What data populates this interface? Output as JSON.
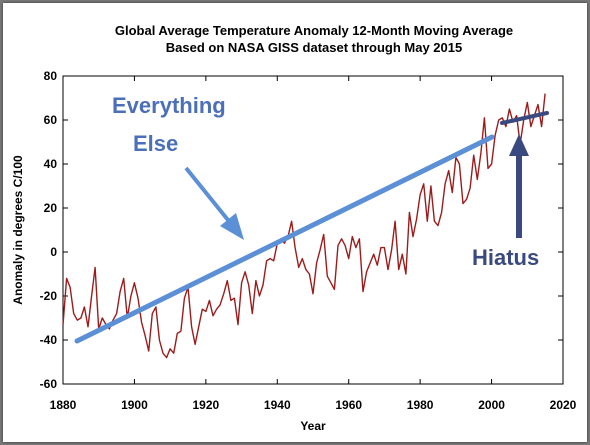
{
  "chart_data": {
    "type": "line",
    "title": "Global Average Temperature Anomaly 12-Month Moving Average",
    "subtitle": "Based on NASA GISS dataset through May 2015",
    "xlabel": "Year",
    "ylabel": "Anomaly in degrees C/100",
    "xlim": [
      1880,
      2020
    ],
    "ylim": [
      -60,
      80
    ],
    "xticks": [
      1880,
      1900,
      1920,
      1940,
      1960,
      1980,
      2000,
      2020
    ],
    "yticks": [
      -60,
      -40,
      -20,
      0,
      20,
      40,
      60,
      80
    ],
    "grid": false,
    "series": [
      {
        "color": "#9b1c1c",
        "x": [
          1880.0,
          1881.0,
          1882.0,
          1883.0,
          1884.0,
          1885.0,
          1886.0,
          1887.0,
          1888.0,
          1889.0,
          1890.0,
          1891.0,
          1892.0,
          1893.0,
          1894.0,
          1895.0,
          1896.0,
          1897.0,
          1898.0,
          1899.0,
          1900.0,
          1901.0,
          1902.0,
          1903.0,
          1904.0,
          1905.0,
          1906.0,
          1907.0,
          1908.0,
          1909.0,
          1910.0,
          1911.0,
          1912.0,
          1913.0,
          1914.0,
          1915.0,
          1916.0,
          1917.0,
          1918.0,
          1919.0,
          1920.0,
          1921.0,
          1922.0,
          1923.0,
          1924.0,
          1925.0,
          1926.0,
          1927.0,
          1928.0,
          1929.0,
          1930.0,
          1931.0,
          1932.0,
          1933.0,
          1934.0,
          1935.0,
          1936.0,
          1937.0,
          1938.0,
          1939.0,
          1940.0,
          1941.0,
          1942.0,
          1943.0,
          1944.0,
          1945.0,
          1946.0,
          1947.0,
          1948.0,
          1949.0,
          1950.0,
          1951.0,
          1952.0,
          1953.0,
          1954.0,
          1955.0,
          1956.0,
          1957.0,
          1958.0,
          1959.0,
          1960.0,
          1961.0,
          1962.0,
          1963.0,
          1964.0,
          1965.0,
          1966.0,
          1967.0,
          1968.0,
          1969.0,
          1970.0,
          1971.0,
          1972.0,
          1973.0,
          1974.0,
          1975.0,
          1976.0,
          1977.0,
          1978.0,
          1979.0,
          1980.0,
          1981.0,
          1982.0,
          1983.0,
          1984.0,
          1985.0,
          1986.0,
          1987.0,
          1988.0,
          1989.0,
          1990.0,
          1991.0,
          1992.0,
          1993.0,
          1994.0,
          1995.0,
          1996.0,
          1997.0,
          1998.0,
          1999.0,
          2000.0,
          2001.0,
          2002.0,
          2003.0,
          2004.0,
          2005.0,
          2006.0,
          2007.0,
          2008.0,
          2009.0,
          2010.0,
          2011.0,
          2012.0,
          2013.0,
          2014.0,
          2015.0
        ],
        "values": [
          -33,
          -12,
          -16,
          -28,
          -31,
          -30,
          -25,
          -34,
          -20,
          -7,
          -35,
          -30,
          -33,
          -35,
          -31,
          -28,
          -18,
          -12,
          -30,
          -20,
          -14,
          -21,
          -32,
          -38,
          -45,
          -28,
          -25,
          -40,
          -46,
          -48,
          -44,
          -46,
          -37,
          -36,
          -21,
          -16,
          -34,
          -42,
          -34,
          -26,
          -27,
          -22,
          -29,
          -26,
          -24,
          -19,
          -13,
          -22,
          -21,
          -33,
          -14,
          -9,
          -15,
          -28,
          -13,
          -20,
          -15,
          -4,
          -3,
          -4,
          4,
          6,
          4,
          7,
          14,
          2,
          -7,
          -3,
          -8,
          -10,
          -19,
          -5,
          1,
          8,
          -11,
          -14,
          -17,
          3,
          6,
          3,
          -3,
          7,
          2,
          6,
          -18,
          -9,
          -5,
          -1,
          -6,
          2,
          2,
          -8,
          1,
          14,
          -8,
          -1,
          -10,
          18,
          7,
          15,
          26,
          31,
          14,
          30,
          14,
          12,
          18,
          31,
          37,
          27,
          43,
          40,
          22,
          24,
          29,
          44,
          33,
          45,
          61,
          38,
          40,
          53,
          60,
          61,
          57,
          65,
          59,
          62,
          49,
          60,
          68,
          57,
          62,
          67,
          57,
          72
        ]
      }
    ],
    "annotations": {
      "everything_else": [
        "Everything",
        "Else"
      ],
      "hiatus": "Hiatus"
    },
    "colors": {
      "trend_line": "#5b8fd6",
      "annotation_text": "#4b6fb8",
      "hiatus": "#3a4a80",
      "series": "#9b1c1c"
    }
  }
}
